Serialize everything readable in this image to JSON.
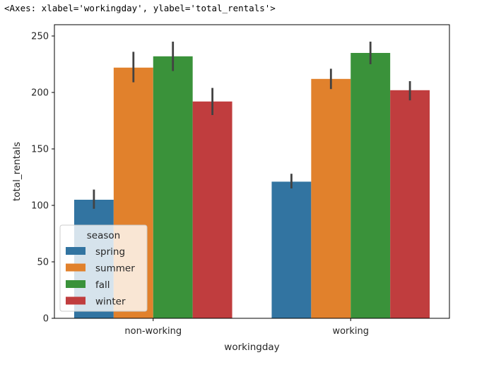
{
  "output_header": "<Axes: xlabel='workingday', ylabel='total_rentals'>",
  "chart_data": {
    "type": "bar",
    "title": "",
    "xlabel": "workingday",
    "ylabel": "total_rentals",
    "categories": [
      "non-working",
      "working"
    ],
    "ylim": [
      0,
      260
    ],
    "yticks": [
      0,
      50,
      100,
      150,
      200,
      250
    ],
    "grid": false,
    "legend": {
      "title": "season",
      "position": "lower-left"
    },
    "series": [
      {
        "name": "spring",
        "color": "#3274a1",
        "values": [
          105,
          121
        ],
        "ci": [
          [
            97,
            114
          ],
          [
            115,
            128
          ]
        ]
      },
      {
        "name": "summer",
        "color": "#e1812c",
        "values": [
          222,
          212
        ],
        "ci": [
          [
            209,
            236
          ],
          [
            203,
            221
          ]
        ]
      },
      {
        "name": "fall",
        "color": "#3a923a",
        "values": [
          232,
          235
        ],
        "ci": [
          [
            219,
            245
          ],
          [
            225,
            245
          ]
        ]
      },
      {
        "name": "winter",
        "color": "#c03d3e",
        "values": [
          192,
          202
        ],
        "ci": [
          [
            180,
            204
          ],
          [
            193,
            210
          ]
        ]
      }
    ]
  }
}
